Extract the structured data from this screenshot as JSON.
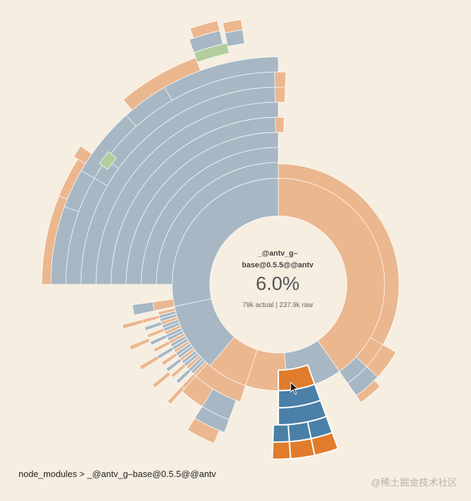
{
  "center": {
    "name_line1": "_@antv_g–",
    "name_line2": "base@0.5.5@@antv",
    "percent": "6.0%",
    "size": "79k actual | 237.9k raw"
  },
  "breadcrumb": "node_modules > _@antv_g–base@0.5.5@@antv",
  "watermark": "@稀土掘金技术社区",
  "colors": {
    "background": "#f6eee1",
    "directory": "#a7b8c4",
    "file": "#ebb78f",
    "json": "#b3cd9f",
    "highlight_directory": "#4a80a7",
    "highlight_file": "#e07c2b"
  },
  "chart_data": {
    "type": "sunburst",
    "selected_node": "_@antv_g–base@0.5.5@@antv",
    "selected_share_percent": 6.0,
    "actual_size": "79k",
    "raw_size": "237.9k",
    "color_legend": {
      "directory": "blue-grey",
      "file": "orange",
      "json_file": "green",
      "hovered_path": "highlighted"
    }
  }
}
